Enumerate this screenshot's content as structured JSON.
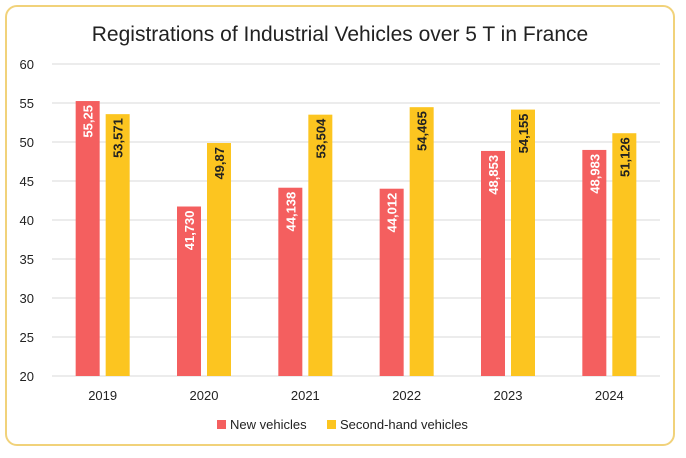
{
  "chart_data": {
    "type": "bar",
    "title": "Registrations of Industrial Vehicles over 5 T in France",
    "xlabel": "",
    "ylabel": "",
    "categories": [
      "2019",
      "2020",
      "2021",
      "2022",
      "2023",
      "2024"
    ],
    "ylim": [
      20,
      60
    ],
    "yticks": [
      "20",
      "25",
      "30",
      "35",
      "40",
      "45",
      "50",
      "55",
      "60"
    ],
    "grid": true,
    "legend_position": "bottom",
    "series": [
      {
        "name": "New vehicles",
        "color": "#f45f5f",
        "values": [
          55.25,
          41.73,
          44.138,
          44.012,
          48.853,
          48.983
        ],
        "labels": [
          "55,25",
          "41,730",
          "44,138",
          "44,012",
          "48,853",
          "48,983"
        ]
      },
      {
        "name": "Second-hand vehicles",
        "color": "#fcc520",
        "values": [
          53.571,
          49.87,
          53.504,
          54.465,
          54.155,
          51.126
        ],
        "labels": [
          "53,571",
          "49,87",
          "53,504",
          "54,465",
          "54,155",
          "51,126"
        ]
      }
    ]
  },
  "colors": {
    "frame_border": "#f1d27a",
    "grid": "#d9d9d9",
    "text": "#222222"
  }
}
